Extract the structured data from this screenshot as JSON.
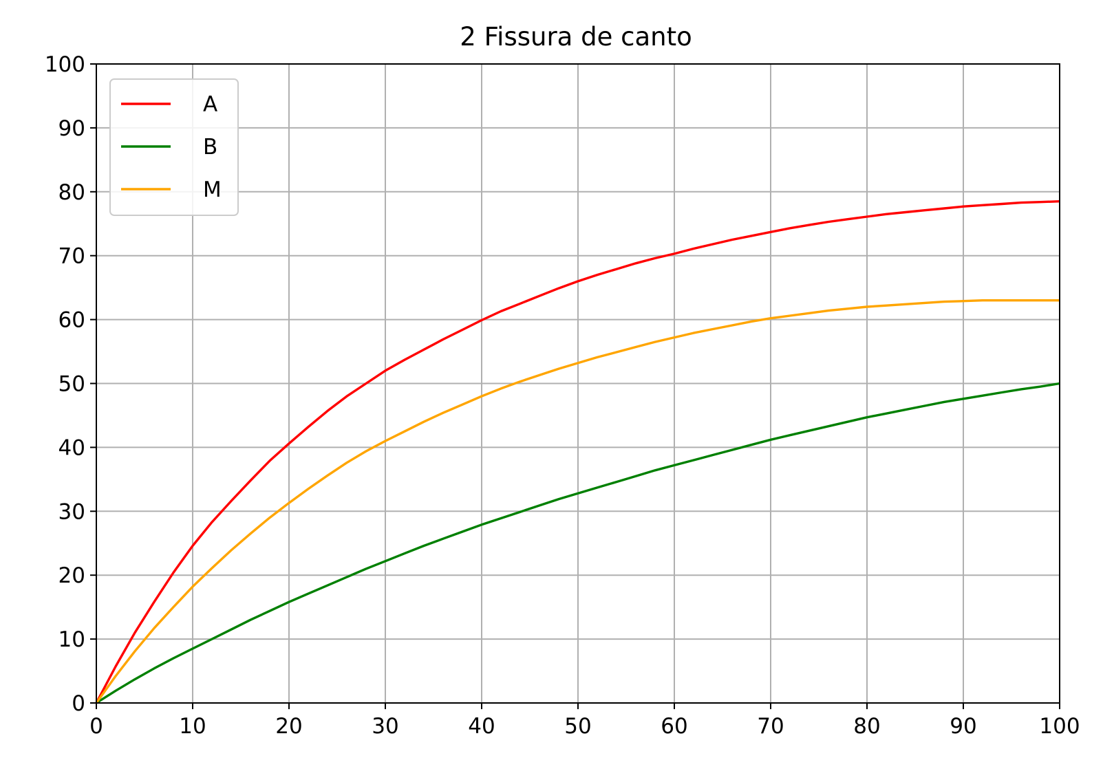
{
  "chart_data": {
    "type": "line",
    "title": "2 Fissura de canto",
    "xlabel": "",
    "ylabel": "",
    "xlim": [
      0,
      100
    ],
    "ylim": [
      0,
      100
    ],
    "xticks": [
      "0",
      "10",
      "20",
      "30",
      "40",
      "50",
      "60",
      "70",
      "80",
      "90",
      "100"
    ],
    "yticks": [
      "0",
      "10",
      "20",
      "30",
      "40",
      "50",
      "60",
      "70",
      "80",
      "90",
      "100"
    ],
    "grid": true,
    "legend_position": "upper-left",
    "x": [
      0,
      2,
      4,
      6,
      8,
      10,
      12,
      14,
      16,
      18,
      20,
      22,
      24,
      26,
      28,
      30,
      32,
      34,
      36,
      38,
      40,
      42,
      44,
      46,
      48,
      50,
      52,
      54,
      56,
      58,
      60,
      62,
      64,
      66,
      68,
      70,
      72,
      74,
      76,
      78,
      80,
      82,
      84,
      86,
      88,
      90,
      92,
      94,
      96,
      98,
      100
    ],
    "series": [
      {
        "name": "A",
        "color": "#ff0000",
        "values": [
          0,
          5.7,
          11.0,
          15.8,
          20.4,
          24.6,
          28.3,
          31.6,
          34.8,
          37.9,
          40.6,
          43.2,
          45.7,
          48.0,
          50.0,
          52.0,
          53.7,
          55.3,
          56.9,
          58.4,
          59.9,
          61.3,
          62.5,
          63.7,
          64.9,
          66.0,
          67.0,
          67.9,
          68.8,
          69.6,
          70.3,
          71.1,
          71.8,
          72.5,
          73.1,
          73.7,
          74.3,
          74.8,
          75.3,
          75.7,
          76.1,
          76.5,
          76.8,
          77.1,
          77.4,
          77.7,
          77.9,
          78.1,
          78.3,
          78.4,
          78.5
        ]
      },
      {
        "name": "B",
        "color": "#008000",
        "values": [
          0,
          1.9,
          3.7,
          5.4,
          7.0,
          8.5,
          10.0,
          11.5,
          13.0,
          14.4,
          15.8,
          17.1,
          18.4,
          19.7,
          21.0,
          22.2,
          23.4,
          24.6,
          25.7,
          26.8,
          27.9,
          28.9,
          29.9,
          30.9,
          31.9,
          32.8,
          33.7,
          34.6,
          35.5,
          36.4,
          37.2,
          38.0,
          38.8,
          39.6,
          40.4,
          41.2,
          41.9,
          42.6,
          43.3,
          44.0,
          44.7,
          45.3,
          45.9,
          46.5,
          47.1,
          47.6,
          48.1,
          48.6,
          49.1,
          49.5,
          50.0
        ]
      },
      {
        "name": "M",
        "color": "#ffa500",
        "values": [
          0,
          4.2,
          8.1,
          11.7,
          15.0,
          18.2,
          21.1,
          23.9,
          26.5,
          29.0,
          31.3,
          33.5,
          35.6,
          37.6,
          39.4,
          41.0,
          42.5,
          44.0,
          45.4,
          46.7,
          48.0,
          49.2,
          50.3,
          51.3,
          52.3,
          53.2,
          54.1,
          54.9,
          55.7,
          56.5,
          57.2,
          57.9,
          58.5,
          59.1,
          59.7,
          60.2,
          60.6,
          61.0,
          61.4,
          61.7,
          62.0,
          62.2,
          62.4,
          62.6,
          62.8,
          62.9,
          63.0,
          63.0,
          63.0,
          63.0,
          63.0
        ]
      }
    ]
  }
}
